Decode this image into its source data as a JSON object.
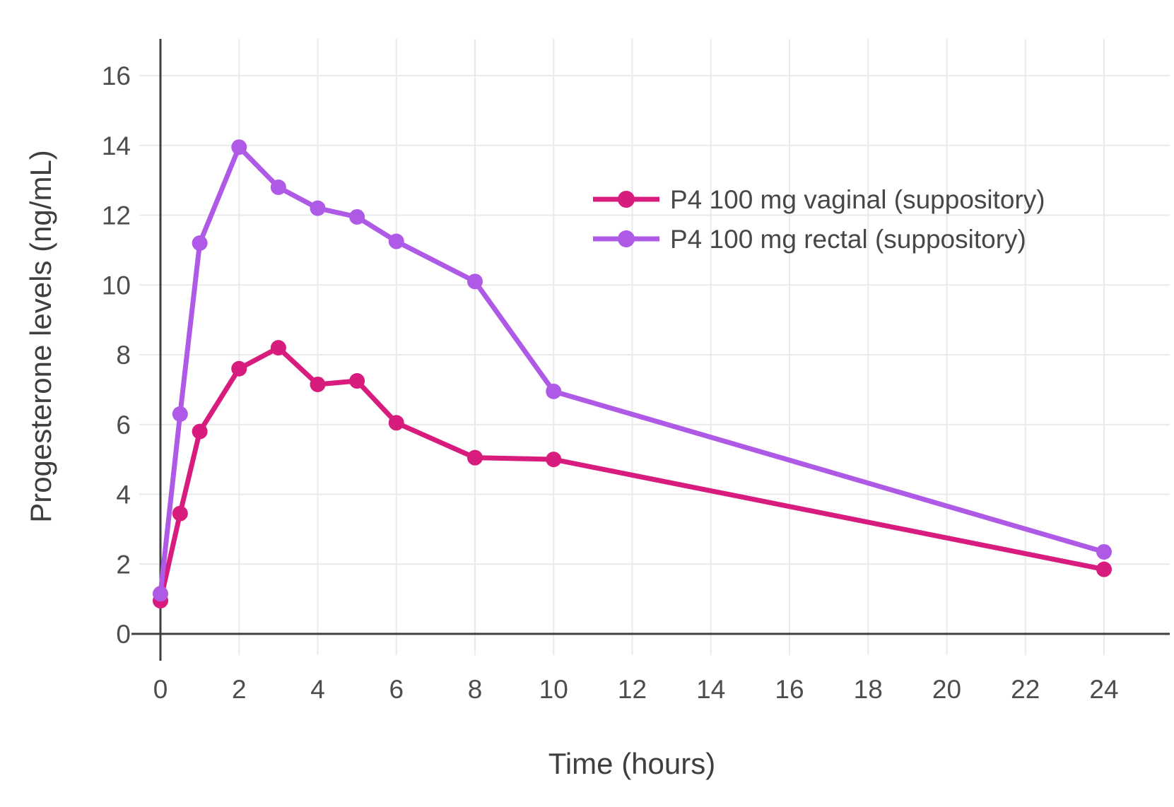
{
  "chart_data": {
    "type": "line",
    "title": "",
    "xlabel": "Time (hours)",
    "ylabel": "Progesterone levels (ng/mL)",
    "x_ticks": [
      0,
      2,
      4,
      6,
      8,
      10,
      12,
      14,
      16,
      18,
      20,
      22,
      24
    ],
    "y_ticks": [
      0,
      2,
      4,
      6,
      8,
      10,
      12,
      14,
      16
    ],
    "xlim": [
      0,
      25.7
    ],
    "ylim": [
      0,
      17
    ],
    "grid": true,
    "legend_position": "inside upper right",
    "series": [
      {
        "name": "P4 100 mg vaginal (suppository)",
        "color": "#D81C7E",
        "x": [
          0,
          0.5,
          1,
          2,
          3,
          4,
          5,
          6,
          8,
          10,
          24
        ],
        "y": [
          0.95,
          3.45,
          5.8,
          7.6,
          8.2,
          7.15,
          7.25,
          6.05,
          5.05,
          5.0,
          1.85
        ]
      },
      {
        "name": "P4 100 mg rectal (suppository)",
        "color": "#AE5AE6",
        "x": [
          0,
          0.5,
          1,
          2,
          3,
          4,
          5,
          6,
          8,
          10,
          24
        ],
        "y": [
          1.15,
          6.3,
          11.2,
          13.95,
          12.8,
          12.2,
          11.95,
          11.25,
          10.1,
          6.95,
          2.35
        ]
      }
    ]
  },
  "style": {
    "background": "#ffffff",
    "grid_color": "#eaeaea",
    "axis_color": "#3f3f3f",
    "tick_label_color": "#4d4d4d",
    "marker_radius": 11,
    "line_width": 7
  }
}
